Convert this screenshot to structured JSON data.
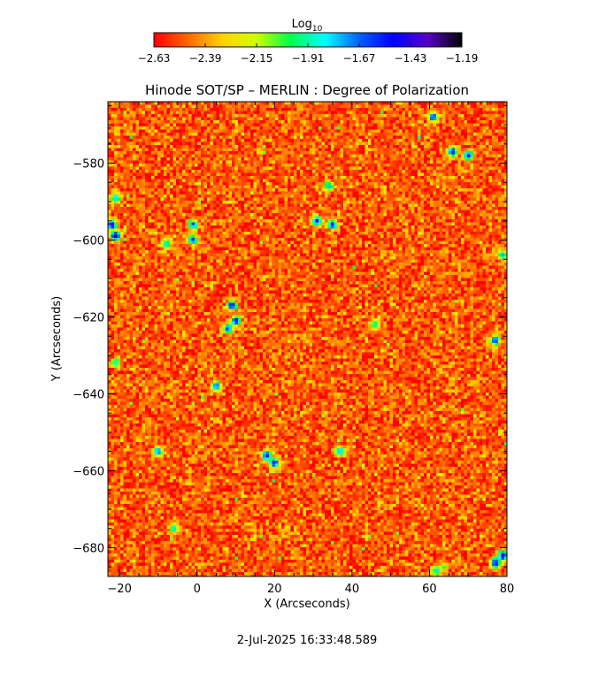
{
  "chart_data": {
    "type": "heatmap",
    "title": "Hinode SOT/SP – MERLIN : Degree of Polarization",
    "xlabel": "X (Arcseconds)",
    "ylabel": "Y (Arcseconds)",
    "xlim": [
      -23,
      80
    ],
    "ylim": [
      -687.5,
      -564
    ],
    "xticks": [
      -20,
      0,
      20,
      40,
      60,
      80
    ],
    "xtick_labels": [
      "−20",
      "0",
      "20",
      "40",
      "60",
      "80"
    ],
    "yticks": [
      -580,
      -600,
      -620,
      -640,
      -660,
      -680
    ],
    "ytick_labels": [
      "−580",
      "−600",
      "−620",
      "−640",
      "−660",
      "−680"
    ],
    "colorbar": {
      "label_base": "Log",
      "label_sub": "10",
      "range": [
        -2.63,
        -1.19
      ],
      "ticks": [
        -2.63,
        -2.39,
        -2.15,
        -1.91,
        -1.67,
        -1.43,
        -1.19
      ],
      "tick_labels": [
        "−2.63",
        "−2.39",
        "−2.15",
        "−1.91",
        "−1.67",
        "−1.43",
        "−1.19"
      ],
      "colormap": [
        "#ff0000",
        "#ff6a00",
        "#ffd200",
        "#cfff00",
        "#00ff50",
        "#00ffff",
        "#0060ff",
        "#0000ff",
        "#5a00c8",
        "#000000"
      ]
    },
    "grid": false,
    "noise_field": {
      "typical": -2.5,
      "spread": 0.13
    },
    "hotspots": [
      {
        "x": 61,
        "y": -568,
        "v": -1.55
      },
      {
        "x": 66,
        "y": -577,
        "v": -1.5
      },
      {
        "x": 70,
        "y": -578,
        "v": -1.5
      },
      {
        "x": -22,
        "y": -596,
        "v": -1.35
      },
      {
        "x": -21,
        "y": -599,
        "v": -1.3
      },
      {
        "x": -21,
        "y": -589,
        "v": -1.75
      },
      {
        "x": -1,
        "y": -596,
        "v": -1.6
      },
      {
        "x": -1,
        "y": -600,
        "v": -1.55
      },
      {
        "x": -8,
        "y": -601,
        "v": -1.8
      },
      {
        "x": 31,
        "y": -595,
        "v": -1.45
      },
      {
        "x": 35,
        "y": -596,
        "v": -1.5
      },
      {
        "x": 34,
        "y": -586,
        "v": -1.75
      },
      {
        "x": 9,
        "y": -617,
        "v": -1.45
      },
      {
        "x": 10,
        "y": -621,
        "v": -1.45
      },
      {
        "x": 8,
        "y": -623,
        "v": -1.6
      },
      {
        "x": 79,
        "y": -604,
        "v": -1.75
      },
      {
        "x": 77,
        "y": -626,
        "v": -1.55
      },
      {
        "x": 46,
        "y": -622,
        "v": -1.85
      },
      {
        "x": -21,
        "y": -632,
        "v": -1.85
      },
      {
        "x": 5,
        "y": -638,
        "v": -1.6
      },
      {
        "x": 18,
        "y": -656,
        "v": -1.45
      },
      {
        "x": 20,
        "y": -658,
        "v": -1.5
      },
      {
        "x": -10,
        "y": -655,
        "v": -1.65
      },
      {
        "x": 37,
        "y": -655,
        "v": -1.75
      },
      {
        "x": 79,
        "y": -682,
        "v": -1.3
      },
      {
        "x": 77,
        "y": -684,
        "v": -1.45
      },
      {
        "x": -6,
        "y": -675,
        "v": -1.8
      },
      {
        "x": 62,
        "y": -686,
        "v": -1.8
      }
    ]
  },
  "footer": {
    "timestamp": "2-Jul-2025 16:33:48.589"
  }
}
